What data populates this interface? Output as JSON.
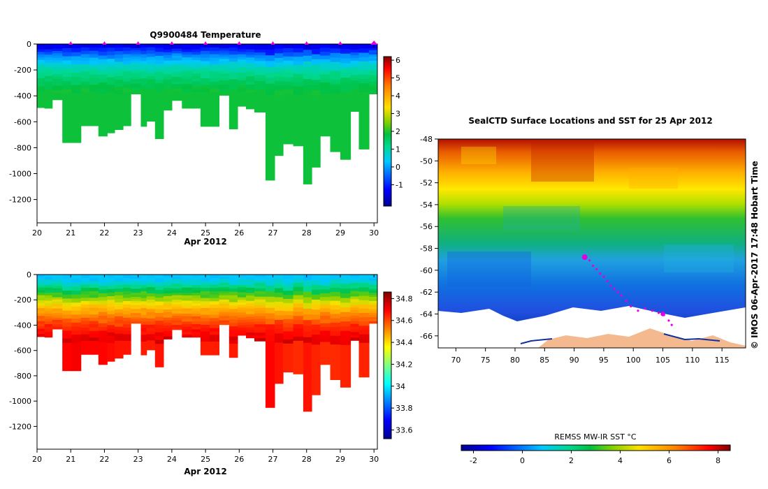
{
  "chart_data": [
    {
      "type": "heatmap",
      "title": "Q9900484  Temperature",
      "x_ticks": [
        "20",
        "21",
        "22",
        "23",
        "24",
        "25",
        "26",
        "27",
        "28",
        "29",
        "30"
      ],
      "xlabel": "Apr 2012",
      "x_range": [
        20,
        30.1
      ],
      "y_ticks": [
        "0",
        "-200",
        "-400",
        "-600",
        "-800",
        "-1000",
        "-1200"
      ],
      "y_range": [
        -1380,
        0
      ],
      "colorbar_ticks": [
        "6",
        "5",
        "4",
        "3",
        "2",
        "1",
        "0",
        "-1"
      ],
      "colorbar_range": [
        -2.2,
        6.2
      ],
      "profile_times": [
        20.0,
        20.22,
        20.45,
        20.75,
        21.02,
        21.3,
        21.55,
        21.82,
        22.08,
        22.3,
        22.55,
        22.78,
        23.08,
        23.25,
        23.5,
        23.75,
        24.0,
        24.3,
        24.6,
        24.85,
        25.12,
        25.4,
        25.7,
        25.95,
        26.2,
        26.45,
        26.78,
        27.05,
        27.3,
        27.6,
        27.9,
        28.15,
        28.4,
        28.7,
        29.0,
        29.3,
        29.55,
        29.85,
        30.1
      ],
      "profile_max_depth": [
        -490,
        -495,
        -430,
        -760,
        -760,
        -630,
        -630,
        -710,
        -685,
        -660,
        -630,
        -385,
        -635,
        -595,
        -730,
        -510,
        -435,
        -495,
        -495,
        -635,
        -635,
        -395,
        -655,
        -480,
        -500,
        -525,
        -1050,
        -860,
        -770,
        -785,
        -1080,
        -950,
        -710,
        -830,
        -890,
        -520,
        -810,
        -385,
        -635
      ],
      "profile_max_value": [
        1.9,
        1.9,
        1.9,
        1.9,
        1.9,
        1.9,
        1.9,
        1.9,
        1.9,
        1.9,
        1.9,
        1.9,
        1.9,
        1.9,
        1.9,
        1.9,
        1.9,
        1.9,
        1.9,
        1.9,
        1.9,
        1.9,
        1.9,
        1.9,
        1.9,
        1.9,
        1.9,
        1.9,
        1.9,
        1.9,
        1.9,
        1.9,
        1.9,
        1.9,
        1.9,
        1.9,
        1.9,
        1.9,
        1.9
      ],
      "surface_values": [
        -1.4,
        -1.0,
        -0.6,
        -0.2,
        0.1,
        0.3,
        0.6,
        0.8,
        1.0,
        1.2,
        1.3,
        1.5,
        1.6,
        1.7,
        1.8,
        1.85,
        1.9
      ],
      "surface_ref_depth": -360,
      "markers_x": [
        21,
        22,
        23,
        24,
        25,
        26,
        27,
        28,
        29,
        30
      ]
    },
    {
      "type": "heatmap",
      "title": "",
      "x_ticks": [
        "20",
        "21",
        "22",
        "23",
        "24",
        "25",
        "26",
        "27",
        "28",
        "29",
        "30"
      ],
      "xlabel": "Apr 2012",
      "x_range": [
        20,
        30.1
      ],
      "y_ticks": [
        "0",
        "-200",
        "-400",
        "-600",
        "-800",
        "-1000",
        "-1200"
      ],
      "y_range": [
        -1380,
        0
      ],
      "colorbar_ticks": [
        "34.8",
        "34.6",
        "34.4",
        "34.2",
        "34",
        "33.8",
        "33.6"
      ],
      "colorbar_range": [
        33.52,
        34.86
      ],
      "profile_times": [
        20.0,
        20.22,
        20.45,
        20.75,
        21.02,
        21.3,
        21.55,
        21.82,
        22.08,
        22.3,
        22.55,
        22.78,
        23.08,
        23.25,
        23.5,
        23.75,
        24.0,
        24.3,
        24.6,
        24.85,
        25.12,
        25.4,
        25.7,
        25.95,
        26.2,
        26.45,
        26.78,
        27.05,
        27.3,
        27.6,
        27.9,
        28.15,
        28.4,
        28.7,
        29.0,
        29.3,
        29.55,
        29.85,
        30.1
      ],
      "profile_max_depth": [
        -490,
        -495,
        -430,
        -760,
        -760,
        -630,
        -630,
        -710,
        -685,
        -660,
        -630,
        -385,
        -635,
        -595,
        -730,
        -510,
        -435,
        -495,
        -495,
        -635,
        -635,
        -395,
        -655,
        -480,
        -500,
        -525,
        -1050,
        -860,
        -770,
        -785,
        -1080,
        -950,
        -710,
        -830,
        -890,
        -520,
        -810,
        -385,
        -635
      ],
      "profile_max_value": [
        34.75,
        34.75,
        34.73,
        34.75,
        34.76,
        34.75,
        34.75,
        34.75,
        34.74,
        34.73,
        34.73,
        34.72,
        34.72,
        34.72,
        34.73,
        34.72,
        34.71,
        34.72,
        34.72,
        34.72,
        34.72,
        34.71,
        34.72,
        34.72,
        34.72,
        34.72,
        34.75,
        34.73,
        34.71,
        34.7,
        34.73,
        34.71,
        34.7,
        34.7,
        34.71,
        34.7,
        34.71,
        34.69,
        34.7
      ],
      "surface_values": [
        33.92,
        33.98,
        34.06,
        34.14,
        34.22,
        34.3,
        34.38,
        34.46,
        34.52,
        34.58,
        34.63,
        34.67,
        34.71,
        34.74,
        34.76,
        34.78,
        34.8
      ],
      "surface_ref_depth": -520,
      "markers_x": []
    },
    {
      "type": "heatmap",
      "title": "SealCTD Surface Locations and SST for 25 Apr 2012",
      "x_ticks": [
        "70",
        "75",
        "80",
        "85",
        "90",
        "95",
        "100",
        "105",
        "110",
        "115"
      ],
      "x_range": [
        67,
        119
      ],
      "y_ticks": [
        "-48",
        "-50",
        "-52",
        "-54",
        "-56",
        "-58",
        "-60",
        "-62",
        "-64",
        "-66"
      ],
      "y_range": [
        -67.1,
        -48
      ],
      "colorbar_label": "REMSS MW-IR SST °C",
      "colorbar_ticks": [
        "-2",
        "0",
        "2",
        "4",
        "6",
        "8"
      ],
      "colorbar_range": [
        -2.5,
        8.5
      ],
      "track_points": [
        [
          91.8,
          -58.8
        ],
        [
          92.6,
          -59.1
        ],
        [
          93.2,
          -59.6
        ],
        [
          93.8,
          -59.9
        ],
        [
          94.4,
          -60.3
        ],
        [
          95.0,
          -60.6
        ],
        [
          95.6,
          -61.0
        ],
        [
          96.2,
          -61.4
        ],
        [
          96.8,
          -61.7
        ],
        [
          97.4,
          -62.0
        ],
        [
          98.0,
          -62.3
        ],
        [
          98.8,
          -62.8
        ],
        [
          99.6,
          -63.3
        ],
        [
          100.8,
          -63.7
        ],
        [
          102.0,
          -63.5
        ],
        [
          103.2,
          -63.7
        ],
        [
          104.3,
          -63.9
        ],
        [
          105.2,
          -64.1
        ],
        [
          106.0,
          -64.6
        ],
        [
          106.5,
          -65.0
        ],
        [
          105.0,
          -64.0
        ]
      ],
      "track_start": [
        91.8,
        -58.8
      ],
      "track_end": [
        105.0,
        -64.0
      ]
    }
  ],
  "copyright": "© IMOS 06-Apr-2017 17:48 Hobart Time"
}
